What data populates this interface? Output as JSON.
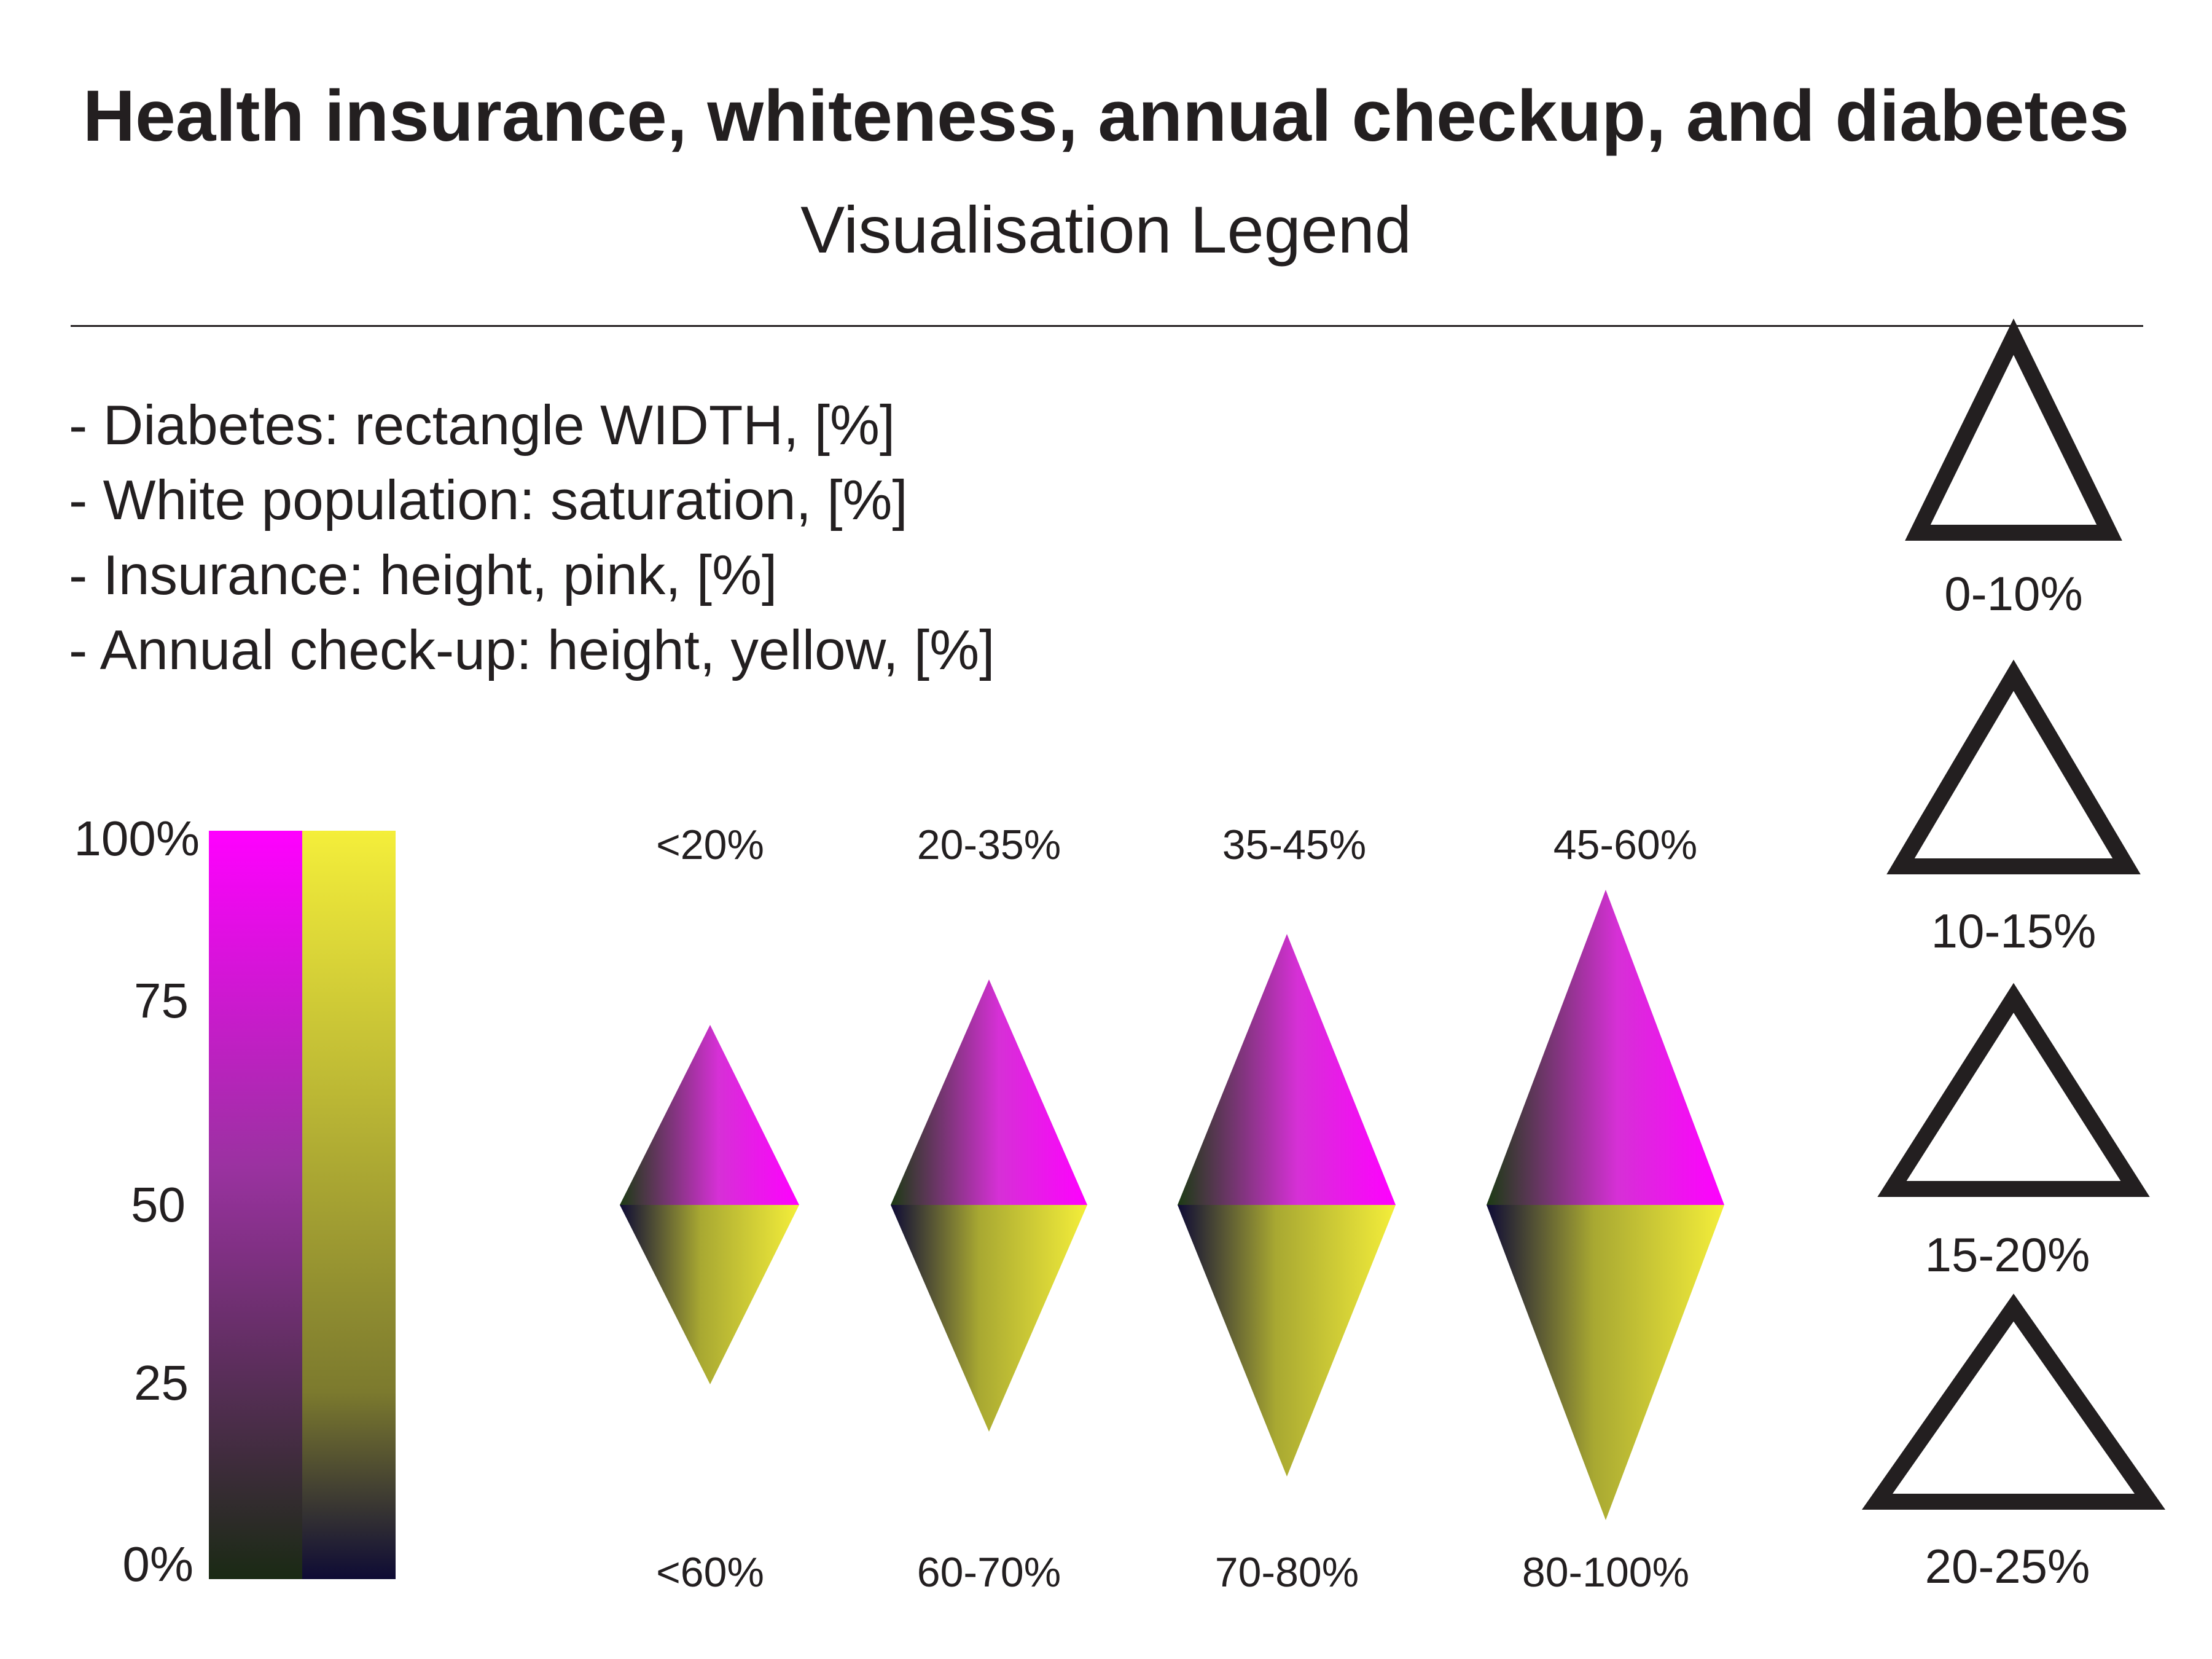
{
  "title": "Health insurance, whiteness, annual checkup, and diabetes",
  "subtitle": "Visualisation Legend",
  "encodings": [
    "- Diabetes: rectangle WIDTH, [%]",
    "- White population: saturation, [%]",
    "- Insurance: height, pink, [%]",
    "- Annual check-up: height, yellow, [%]"
  ],
  "scale": {
    "ticks": [
      "100%",
      "75",
      "50",
      "25",
      "0%"
    ],
    "insurance_color_top": "#ff00ff",
    "insurance_color_bottom": "#1a2a14",
    "checkup_color_top": "#f4ee3a",
    "checkup_color_bottom": "#0e0b35"
  },
  "diamonds": {
    "top_labels": [
      "<20%",
      "20-35%",
      "35-45%",
      "45-60%"
    ],
    "bottom_labels": [
      "<60%",
      "60-70%",
      "70-80%",
      "80-100%"
    ],
    "upper_colors": [
      "#1c3a14",
      "#d630d6",
      "#ff00ff"
    ],
    "lower_colors": [
      "#0e0b35",
      "#a8a832",
      "#f4ee3a"
    ]
  },
  "triangles": {
    "labels": [
      "0-10%",
      "10-15%",
      "15-20%",
      "20-25%"
    ],
    "stroke_color": "#231f20"
  }
}
